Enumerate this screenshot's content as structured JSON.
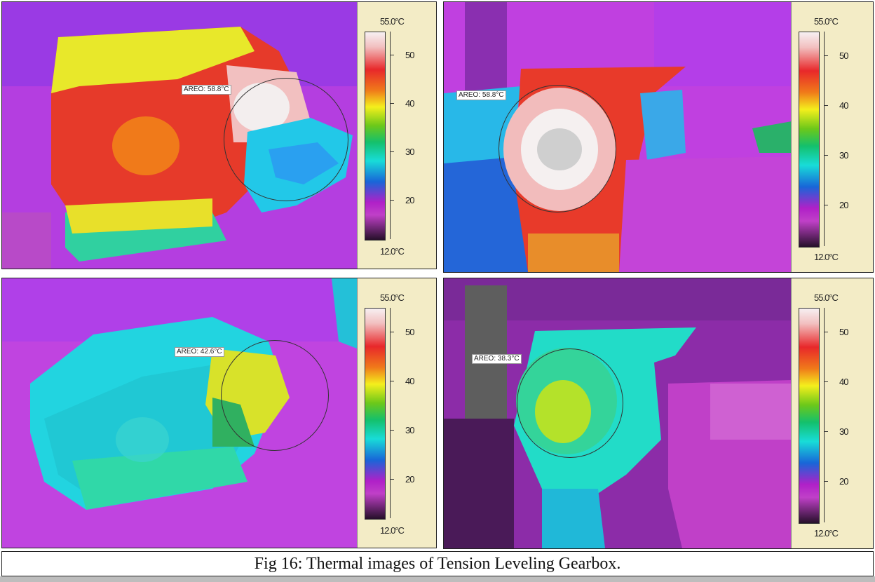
{
  "caption": "Fig 16: Thermal images of Tension Leveling Gearbox.",
  "scale": {
    "max_label": "55.0°C",
    "min_label": "12.0°C",
    "ticks": [
      "50",
      "40",
      "30",
      "20"
    ],
    "tick_values": [
      50,
      40,
      30,
      20
    ],
    "range": [
      12,
      55
    ]
  },
  "panels": [
    {
      "area_label": "AREO: 58.8°C"
    },
    {
      "area_label": "AREO: 58.8°C"
    },
    {
      "area_label": "AREO: 42.6°C"
    },
    {
      "area_label": "AREO: 38.3°C"
    }
  ]
}
